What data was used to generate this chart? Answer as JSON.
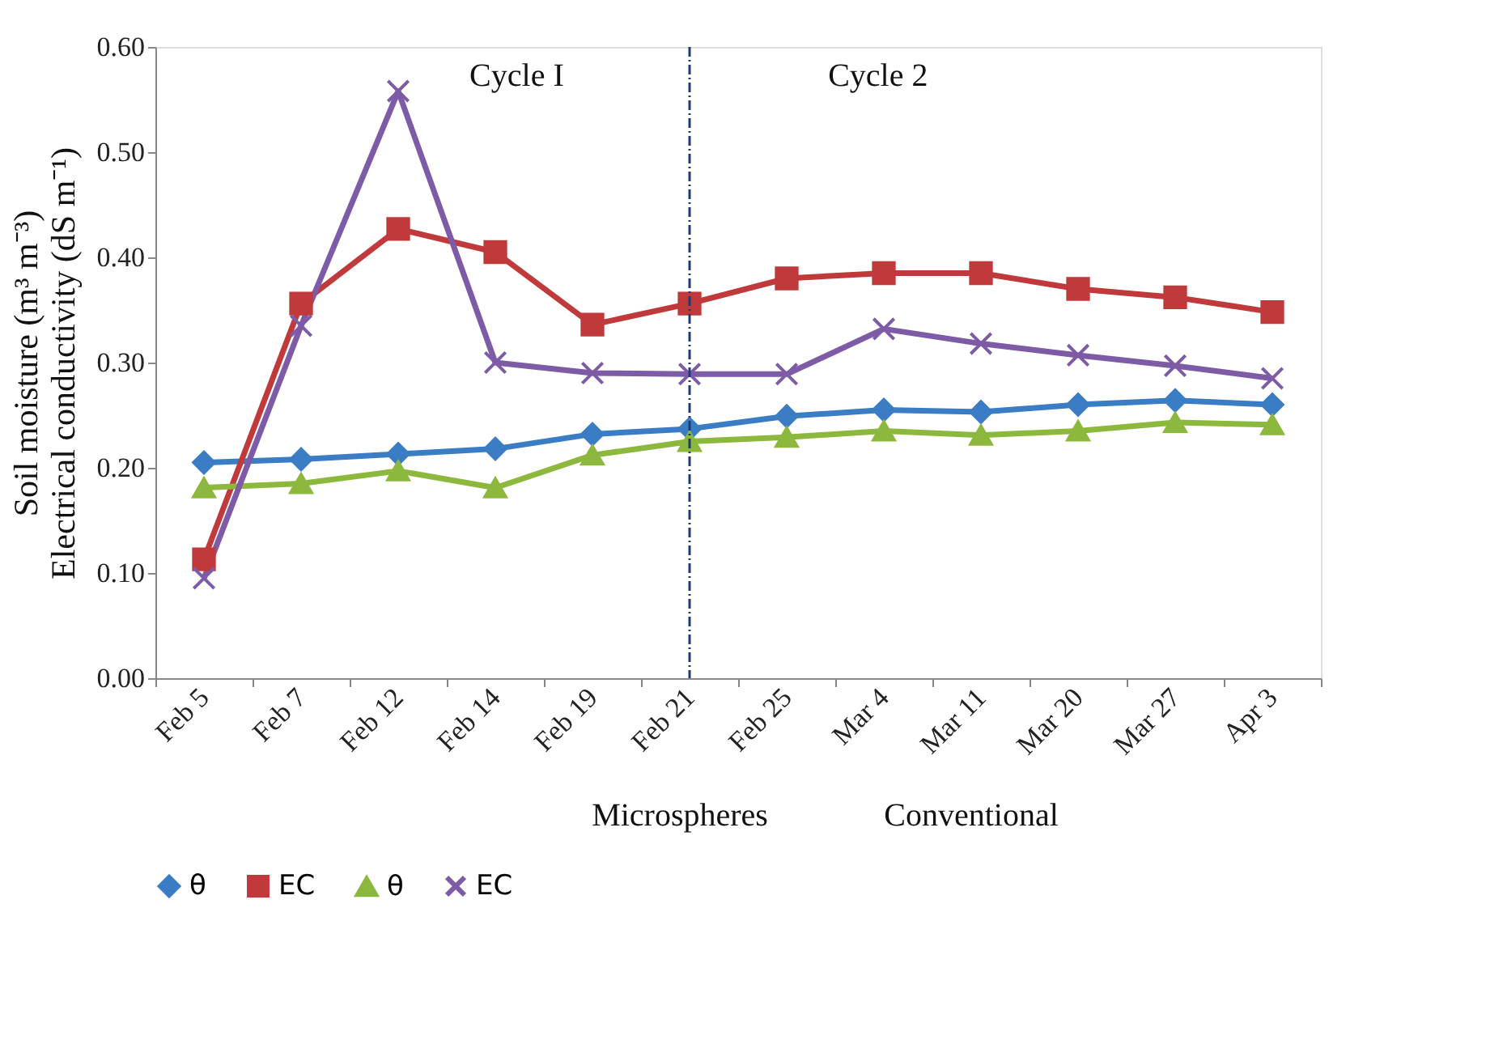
{
  "chart_data": {
    "type": "line",
    "ylabel": "Soil moisture (m³ m⁻³)\nElectrical conductivity (dS m⁻¹)",
    "categories": [
      "Feb 5",
      "Feb 7",
      "Feb 12",
      "Feb 14",
      "Feb 19",
      "Feb 21",
      "Feb 25",
      "Mar 4",
      "Mar 11",
      "Mar 20",
      "Mar 27",
      "Apr 3"
    ],
    "series": [
      {
        "name": "θ",
        "color": "#3b7dc4",
        "marker": "diamond",
        "values": [
          0.205,
          0.208,
          0.213,
          0.218,
          0.232,
          0.237,
          0.249,
          0.255,
          0.253,
          0.26,
          0.264,
          0.26
        ]
      },
      {
        "name": "EC",
        "color": "#c0393b",
        "marker": "square",
        "values": [
          0.113,
          0.356,
          0.427,
          0.405,
          0.336,
          0.356,
          0.38,
          0.385,
          0.385,
          0.37,
          0.362,
          0.348
        ]
      },
      {
        "name": "θ",
        "color": "#8db83e",
        "marker": "triangle",
        "values": [
          0.181,
          0.185,
          0.197,
          0.181,
          0.212,
          0.225,
          0.229,
          0.235,
          0.231,
          0.235,
          0.243,
          0.241
        ]
      },
      {
        "name": "EC",
        "color": "#7e5ba6",
        "marker": "cross",
        "values": [
          0.095,
          0.335,
          0.558,
          0.3,
          0.29,
          0.289,
          0.289,
          0.332,
          0.318,
          0.307,
          0.297,
          0.285
        ]
      }
    ],
    "ylim": [
      0,
      0.6
    ],
    "yticks": [
      {
        "value": 0,
        "label": "0.00"
      },
      {
        "value": 0.1,
        "label": "0.10"
      },
      {
        "value": 0.2,
        "label": "0.20"
      },
      {
        "value": 0.3,
        "label": "0.30"
      },
      {
        "value": 0.4,
        "label": "0.40"
      },
      {
        "value": 0.5,
        "label": "0.50"
      },
      {
        "value": 0.6,
        "label": "0.60"
      }
    ],
    "ref_lines": [
      {
        "axis": "x",
        "value": "Feb 21",
        "color": "#1f3b73",
        "line_style": "dashed"
      }
    ],
    "annotations": [
      "Cycle I",
      "Cycle 2",
      "Microspheres",
      "Conventional"
    ],
    "grid": false,
    "legend": "bottom",
    "line_style": "solid"
  }
}
